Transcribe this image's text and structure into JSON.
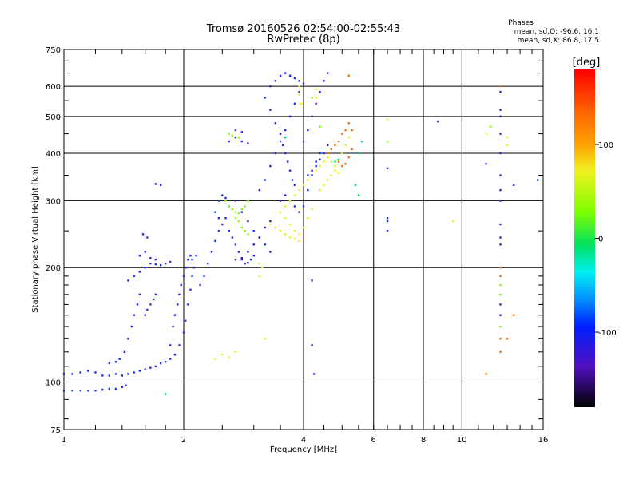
{
  "chart_data": {
    "type": "scatter",
    "title": "Tromsø 20160526 02:54:00-02:55:43",
    "subtitle": "RwPretec (8p)",
    "xlabel": "Frequency [MHz]",
    "ylabel": "Stationary phase Virtual Height [km]",
    "x_scale": "log",
    "y_scale": "log",
    "xlim": [
      1,
      16
    ],
    "ylim": [
      75,
      750
    ],
    "x_ticks": [
      1,
      2,
      4,
      6,
      8,
      10,
      16
    ],
    "x_tick_labels": [
      "1",
      "2",
      "4",
      "6",
      "8",
      "10",
      "16"
    ],
    "y_ticks": [
      75,
      100,
      200,
      300,
      400,
      500,
      600,
      750
    ],
    "y_tick_labels": [
      "75",
      "100",
      "200",
      "300",
      "400",
      "500",
      "600",
      "750"
    ],
    "grid": true,
    "phase_stats": {
      "title": "Phases",
      "line_o": "mean, sd,O: -96.6, 16.1",
      "line_x": "mean, sd,X: 86.8, 17.5"
    },
    "colorbar": {
      "label": "[deg]",
      "range": [
        -180,
        180
      ],
      "ticks": [
        100,
        0,
        -100
      ],
      "tick_labels": [
        "100",
        "0",
        "-100"
      ]
    },
    "colors": {
      "o_trace": "#1f3ff0",
      "o_trace_dark": "#3a2ad8",
      "x_trace": "#e8e820",
      "x_trace_orange": "#f0a020",
      "cyan": "#20c0e0",
      "green": "#30d030"
    },
    "series": [
      {
        "phase": -100,
        "points": [
          [
            1.0,
            95
          ],
          [
            1.05,
            95
          ],
          [
            1.1,
            95
          ],
          [
            1.15,
            95
          ],
          [
            1.2,
            95
          ],
          [
            1.25,
            95.5
          ],
          [
            1.3,
            96
          ],
          [
            1.35,
            96
          ],
          [
            1.4,
            97
          ],
          [
            1.43,
            98
          ],
          [
            1.0,
            105
          ],
          [
            1.05,
            105
          ],
          [
            1.1,
            106
          ],
          [
            1.15,
            107
          ],
          [
            1.2,
            106
          ],
          [
            1.25,
            104
          ],
          [
            1.3,
            104
          ],
          [
            1.35,
            105
          ],
          [
            1.4,
            104
          ],
          [
            1.45,
            105
          ],
          [
            1.5,
            106
          ],
          [
            1.55,
            107
          ],
          [
            1.6,
            108
          ],
          [
            1.65,
            109
          ],
          [
            1.7,
            110
          ],
          [
            1.75,
            112
          ],
          [
            1.8,
            113
          ],
          [
            1.85,
            115
          ],
          [
            1.9,
            118
          ],
          [
            1.95,
            125
          ],
          [
            1.3,
            112
          ],
          [
            1.35,
            113
          ],
          [
            1.38,
            115
          ],
          [
            1.42,
            120
          ],
          [
            1.45,
            130
          ],
          [
            1.48,
            140
          ],
          [
            1.5,
            150
          ],
          [
            1.53,
            160
          ],
          [
            1.55,
            170
          ],
          [
            1.45,
            185
          ],
          [
            1.5,
            190
          ],
          [
            1.55,
            195
          ],
          [
            1.6,
            200
          ],
          [
            1.65,
            205
          ],
          [
            1.7,
            204
          ],
          [
            1.75,
            203
          ],
          [
            1.8,
            205
          ],
          [
            1.85,
            207
          ],
          [
            1.55,
            215
          ],
          [
            1.6,
            220
          ],
          [
            1.65,
            212
          ],
          [
            1.7,
            210
          ],
          [
            1.58,
            245
          ],
          [
            1.62,
            240
          ],
          [
            1.7,
            332
          ],
          [
            1.75,
            330
          ],
          [
            1.6,
            150
          ],
          [
            1.62,
            155
          ],
          [
            1.65,
            160
          ],
          [
            1.68,
            165
          ],
          [
            1.7,
            170
          ],
          [
            1.85,
            125
          ],
          [
            1.88,
            140
          ],
          [
            1.9,
            150
          ],
          [
            1.93,
            160
          ],
          [
            1.95,
            170
          ],
          [
            1.97,
            180
          ],
          [
            2.0,
            190
          ],
          [
            2.03,
            200
          ],
          [
            2.05,
            210
          ],
          [
            2.08,
            215
          ],
          [
            2.1,
            210
          ],
          [
            2.0,
            135
          ],
          [
            2.02,
            145
          ],
          [
            2.05,
            160
          ],
          [
            2.08,
            175
          ],
          [
            2.1,
            190
          ],
          [
            2.12,
            200
          ],
          [
            2.15,
            215
          ],
          [
            2.2,
            180
          ],
          [
            2.25,
            190
          ],
          [
            2.3,
            205
          ],
          [
            2.35,
            220
          ],
          [
            2.4,
            235
          ],
          [
            2.45,
            250
          ],
          [
            2.5,
            260
          ],
          [
            2.55,
            270
          ],
          [
            2.6,
            250
          ],
          [
            2.65,
            240
          ],
          [
            2.7,
            230
          ],
          [
            2.75,
            220
          ],
          [
            2.8,
            210
          ],
          [
            2.85,
            205
          ],
          [
            2.9,
            206
          ],
          [
            2.95,
            210
          ],
          [
            3.0,
            215
          ],
          [
            2.6,
            290
          ],
          [
            2.7,
            300
          ],
          [
            2.8,
            280
          ],
          [
            2.9,
            265
          ],
          [
            3.0,
            250
          ],
          [
            3.1,
            240
          ],
          [
            3.2,
            230
          ],
          [
            3.3,
            220
          ],
          [
            2.45,
            300
          ],
          [
            2.5,
            310
          ],
          [
            2.55,
            305
          ],
          [
            2.4,
            280
          ],
          [
            2.45,
            270
          ],
          [
            2.6,
            430
          ],
          [
            2.7,
            440
          ],
          [
            2.8,
            430
          ],
          [
            2.9,
            425
          ],
          [
            2.7,
            460
          ],
          [
            2.8,
            455
          ],
          [
            3.1,
            320
          ],
          [
            3.2,
            340
          ],
          [
            3.3,
            370
          ],
          [
            3.4,
            400
          ],
          [
            3.5,
            430
          ],
          [
            3.6,
            460
          ],
          [
            3.7,
            500
          ],
          [
            3.8,
            540
          ],
          [
            3.9,
            580
          ],
          [
            4.0,
            610
          ],
          [
            3.3,
            600
          ],
          [
            3.4,
            620
          ],
          [
            3.5,
            640
          ],
          [
            3.6,
            650
          ],
          [
            3.7,
            640
          ],
          [
            3.8,
            630
          ],
          [
            3.9,
            620
          ],
          [
            3.2,
            560
          ],
          [
            3.3,
            520
          ],
          [
            3.4,
            480
          ],
          [
            3.5,
            450
          ],
          [
            3.55,
            420
          ],
          [
            3.6,
            400
          ],
          [
            3.65,
            380
          ],
          [
            3.7,
            360
          ],
          [
            3.75,
            340
          ],
          [
            3.8,
            330
          ],
          [
            3.5,
            300
          ],
          [
            3.6,
            310
          ],
          [
            3.7,
            300
          ],
          [
            3.8,
            290
          ],
          [
            3.9,
            280
          ],
          [
            4.0,
            290
          ],
          [
            4.1,
            320
          ],
          [
            4.2,
            350
          ],
          [
            4.3,
            380
          ],
          [
            4.4,
            400
          ],
          [
            4.0,
            430
          ],
          [
            4.1,
            460
          ],
          [
            4.2,
            500
          ],
          [
            4.3,
            540
          ],
          [
            4.4,
            580
          ],
          [
            4.5,
            620
          ],
          [
            4.6,
            650
          ],
          [
            4.1,
            350
          ],
          [
            4.2,
            360
          ],
          [
            4.3,
            370
          ],
          [
            4.4,
            385
          ],
          [
            4.5,
            400
          ],
          [
            4.6,
            420
          ],
          [
            4.2,
            125
          ],
          [
            4.25,
            105
          ],
          [
            4.2,
            185
          ],
          [
            6.5,
            365
          ],
          [
            6.5,
            250
          ],
          [
            6.5,
            265
          ],
          [
            6.5,
            270
          ],
          [
            8.7,
            485
          ],
          [
            11.5,
            375
          ],
          [
            12.5,
            580
          ],
          [
            12.5,
            520
          ],
          [
            12.5,
            500
          ],
          [
            12.5,
            450
          ],
          [
            12.5,
            400
          ],
          [
            12.5,
            350
          ],
          [
            12.5,
            320
          ],
          [
            12.5,
            300
          ],
          [
            12.5,
            260
          ],
          [
            12.5,
            240
          ],
          [
            12.5,
            230
          ],
          [
            12.5,
            160
          ],
          [
            12.5,
            150
          ],
          [
            15.5,
            340
          ]
        ]
      },
      {
        "phase": 30,
        "points": [
          [
            2.55,
            300
          ],
          [
            2.6,
            290
          ],
          [
            2.65,
            285
          ],
          [
            2.7,
            280
          ],
          [
            2.75,
            278
          ],
          [
            2.8,
            285
          ],
          [
            2.85,
            290
          ],
          [
            2.9,
            300
          ],
          [
            2.7,
            270
          ],
          [
            2.75,
            265
          ],
          [
            2.8,
            255
          ],
          [
            2.85,
            250
          ],
          [
            2.9,
            245
          ],
          [
            2.6,
            450
          ],
          [
            2.65,
            445
          ],
          [
            2.75,
            440
          ],
          [
            4.2,
            560
          ],
          [
            4.4,
            470
          ],
          [
            12.5,
            180
          ],
          [
            12.5,
            170
          ],
          [
            12.5,
            140
          ],
          [
            6.5,
            430
          ],
          [
            11.8,
            470
          ]
        ]
      },
      {
        "phase": 90,
        "points": [
          [
            3.5,
            280
          ],
          [
            3.6,
            270
          ],
          [
            3.7,
            260
          ],
          [
            3.8,
            250
          ],
          [
            3.9,
            245
          ],
          [
            4.0,
            255
          ],
          [
            4.1,
            270
          ],
          [
            4.2,
            285
          ],
          [
            3.3,
            260
          ],
          [
            3.4,
            255
          ],
          [
            3.5,
            250
          ],
          [
            3.6,
            245
          ],
          [
            3.7,
            240
          ],
          [
            3.8,
            238
          ],
          [
            3.9,
            235
          ],
          [
            3.6,
            290
          ],
          [
            3.7,
            300
          ],
          [
            3.8,
            310
          ],
          [
            3.9,
            320
          ],
          [
            4.0,
            330
          ],
          [
            4.1,
            340
          ],
          [
            4.3,
            360
          ],
          [
            4.4,
            370
          ],
          [
            4.5,
            380
          ],
          [
            4.6,
            390
          ],
          [
            4.7,
            380
          ],
          [
            4.8,
            370
          ],
          [
            4.9,
            380
          ],
          [
            5.0,
            400
          ],
          [
            5.1,
            420
          ],
          [
            5.2,
            440
          ],
          [
            4.4,
            320
          ],
          [
            4.5,
            330
          ],
          [
            4.6,
            340
          ],
          [
            4.7,
            350
          ],
          [
            4.8,
            360
          ],
          [
            4.9,
            355
          ],
          [
            3.9,
            600
          ],
          [
            3.9,
            570
          ],
          [
            3.95,
            540
          ],
          [
            4.3,
            590
          ],
          [
            4.3,
            560
          ],
          [
            2.4,
            115
          ],
          [
            2.5,
            118
          ],
          [
            2.6,
            116
          ],
          [
            2.7,
            120
          ],
          [
            3.1,
            190
          ],
          [
            3.15,
            200
          ],
          [
            3.1,
            205
          ],
          [
            3.2,
            130
          ],
          [
            6.5,
            490
          ],
          [
            9.5,
            265
          ],
          [
            11.5,
            450
          ],
          [
            13,
            440
          ],
          [
            13,
            420
          ]
        ]
      },
      {
        "phase": 140,
        "points": [
          [
            4.6,
            400
          ],
          [
            4.7,
            410
          ],
          [
            4.8,
            420
          ],
          [
            4.9,
            430
          ],
          [
            5.0,
            450
          ],
          [
            5.1,
            460
          ],
          [
            5.2,
            480
          ],
          [
            5.3,
            460
          ],
          [
            4.9,
            380
          ],
          [
            5.0,
            370
          ],
          [
            5.1,
            375
          ],
          [
            5.2,
            390
          ],
          [
            5.3,
            410
          ],
          [
            5.2,
            640
          ],
          [
            12.5,
            600
          ],
          [
            12.5,
            200
          ],
          [
            12.5,
            190
          ],
          [
            12.5,
            130
          ],
          [
            12.5,
            120
          ],
          [
            13.5,
            150
          ],
          [
            13,
            130
          ],
          [
            11.5,
            105
          ]
        ]
      },
      {
        "phase": 0,
        "points": [
          [
            5.4,
            330
          ],
          [
            5.5,
            310
          ],
          [
            5.5,
            400
          ],
          [
            5.6,
            430
          ],
          [
            4.9,
            385
          ],
          [
            4.8,
            380
          ],
          [
            3.6,
            440
          ],
          [
            1.8,
            93
          ]
        ]
      },
      {
        "phase": -150,
        "points": [
          [
            2.9,
            220
          ],
          [
            3.0,
            230
          ],
          [
            3.1,
            240
          ],
          [
            3.2,
            255
          ],
          [
            3.3,
            265
          ],
          [
            2.7,
            210
          ],
          [
            2.8,
            212
          ],
          [
            13.5,
            330
          ]
        ]
      }
    ]
  }
}
